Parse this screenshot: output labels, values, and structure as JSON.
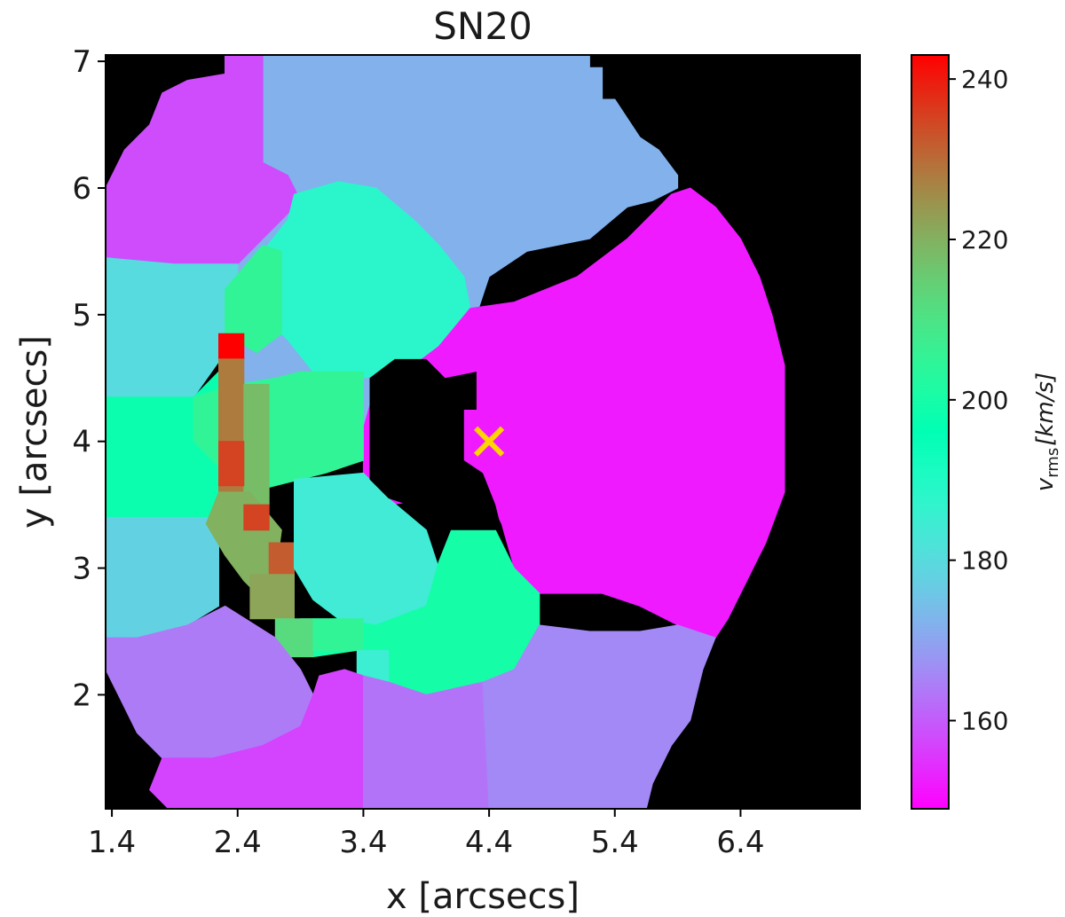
{
  "chart_data": {
    "type": "heatmap",
    "title": "SN20",
    "xlabel": "x [arcsecs]",
    "ylabel": "y [arcsecs]",
    "xlim": [
      1.35,
      7.35
    ],
    "ylim": [
      1.1,
      7.05
    ],
    "xticks": [
      1.4,
      2.4,
      3.4,
      4.4,
      5.4,
      6.4
    ],
    "xtick_labels": [
      "1.4",
      "2.4",
      "3.4",
      "4.4",
      "5.4",
      "6.4"
    ],
    "yticks": [
      2,
      3,
      4,
      5,
      6,
      7
    ],
    "ytick_labels": [
      "2",
      "3",
      "4",
      "5",
      "6",
      "7"
    ],
    "background_color": "#000000",
    "colormap": "rainbow",
    "colorbar": {
      "label_main": "v",
      "label_sub": "rms",
      "label_unit": "[km/s]",
      "vmin": 149,
      "vmax": 243,
      "ticks": [
        160,
        180,
        200,
        220,
        240
      ],
      "tick_labels": [
        "160",
        "180",
        "200",
        "220",
        "240"
      ]
    },
    "marker": {
      "x": 4.4,
      "y": 4.0,
      "symbol": "x",
      "color": "#ffd400"
    },
    "bins": [
      {
        "v": 172,
        "poly": [
          [
            2.3,
            7.05
          ],
          [
            5.2,
            7.05
          ],
          [
            5.2,
            6.95
          ],
          [
            5.3,
            6.95
          ],
          [
            5.3,
            6.7
          ],
          [
            5.4,
            6.7
          ],
          [
            5.5,
            6.55
          ],
          [
            5.6,
            6.4
          ],
          [
            5.75,
            6.3
          ],
          [
            5.9,
            6.1
          ],
          [
            5.9,
            6.0
          ],
          [
            5.7,
            5.9
          ],
          [
            5.5,
            5.85
          ],
          [
            5.2,
            5.6
          ],
          [
            4.7,
            5.5
          ],
          [
            4.4,
            5.3
          ],
          [
            4.3,
            5.0
          ],
          [
            4.1,
            4.8
          ],
          [
            3.9,
            4.75
          ],
          [
            3.5,
            4.45
          ],
          [
            3.4,
            4.1
          ],
          [
            2.6,
            4.1
          ],
          [
            2.3,
            4.6
          ],
          [
            2.15,
            5.2
          ],
          [
            2.2,
            5.65
          ],
          [
            2.3,
            6.0
          ],
          [
            2.3,
            6.3
          ],
          [
            2.3,
            6.6
          ],
          [
            2.3,
            7.05
          ]
        ]
      },
      {
        "v": 158,
        "poly": [
          [
            1.35,
            6.0
          ],
          [
            1.5,
            6.3
          ],
          [
            1.7,
            6.5
          ],
          [
            1.8,
            6.75
          ],
          [
            2.0,
            6.85
          ],
          [
            2.3,
            6.9
          ],
          [
            2.3,
            7.05
          ],
          [
            2.6,
            7.05
          ],
          [
            2.6,
            6.2
          ],
          [
            2.8,
            6.1
          ],
          [
            2.9,
            5.9
          ],
          [
            2.6,
            5.6
          ],
          [
            2.4,
            5.4
          ],
          [
            1.9,
            5.4
          ],
          [
            1.35,
            5.45
          ]
        ]
      },
      {
        "v": 180,
        "poly": [
          [
            1.35,
            5.45
          ],
          [
            1.9,
            5.4
          ],
          [
            2.4,
            5.4
          ],
          [
            2.4,
            5.2
          ],
          [
            2.3,
            4.7
          ],
          [
            2.05,
            4.35
          ],
          [
            1.35,
            4.35
          ]
        ]
      },
      {
        "v": 188,
        "poly": [
          [
            2.85,
            5.95
          ],
          [
            3.2,
            6.05
          ],
          [
            3.5,
            6.0
          ],
          [
            3.8,
            5.75
          ],
          [
            4.0,
            5.55
          ],
          [
            4.2,
            5.3
          ],
          [
            4.25,
            5.05
          ],
          [
            4.05,
            4.75
          ],
          [
            3.7,
            4.55
          ],
          [
            3.4,
            4.5
          ],
          [
            3.0,
            4.55
          ],
          [
            2.8,
            4.8
          ],
          [
            2.6,
            5.0
          ],
          [
            2.5,
            5.2
          ],
          [
            2.6,
            5.5
          ],
          [
            2.8,
            5.75
          ]
        ]
      },
      {
        "v": 205,
        "poly": [
          [
            2.3,
            5.2
          ],
          [
            2.6,
            5.55
          ],
          [
            2.75,
            5.5
          ],
          [
            2.75,
            4.85
          ],
          [
            2.55,
            4.7
          ],
          [
            2.3,
            4.85
          ]
        ]
      },
      {
        "v": 243,
        "poly": [
          [
            2.25,
            4.85
          ],
          [
            2.45,
            4.85
          ],
          [
            2.45,
            4.65
          ],
          [
            2.25,
            4.65
          ]
        ]
      },
      {
        "v": 152,
        "poly": [
          [
            4.25,
            5.05
          ],
          [
            4.6,
            5.1
          ],
          [
            5.1,
            5.3
          ],
          [
            5.5,
            5.6
          ],
          [
            5.7,
            5.8
          ],
          [
            5.85,
            5.95
          ],
          [
            6.0,
            6.0
          ],
          [
            6.2,
            5.85
          ],
          [
            6.4,
            5.6
          ],
          [
            6.55,
            5.3
          ],
          [
            6.65,
            5.0
          ],
          [
            6.75,
            4.6
          ],
          [
            6.75,
            4.0
          ],
          [
            6.75,
            3.6
          ],
          [
            6.6,
            3.2
          ],
          [
            6.45,
            2.9
          ],
          [
            6.3,
            2.6
          ],
          [
            6.2,
            2.45
          ],
          [
            5.9,
            2.55
          ],
          [
            5.6,
            2.7
          ],
          [
            5.3,
            2.8
          ],
          [
            4.8,
            2.8
          ],
          [
            4.6,
            3.0
          ],
          [
            4.5,
            3.35
          ],
          [
            4.4,
            3.55
          ],
          [
            4.3,
            3.75
          ],
          [
            4.2,
            3.6
          ],
          [
            4.0,
            3.55
          ],
          [
            3.6,
            3.5
          ],
          [
            3.4,
            3.75
          ],
          [
            3.4,
            4.1
          ],
          [
            3.5,
            4.45
          ],
          [
            3.8,
            4.6
          ],
          [
            4.0,
            4.75
          ]
        ]
      },
      {
        "v": 198,
        "poly": [
          [
            1.35,
            4.35
          ],
          [
            2.05,
            4.35
          ],
          [
            2.25,
            4.55
          ],
          [
            2.25,
            3.4
          ],
          [
            1.35,
            3.4
          ]
        ]
      },
      {
        "v": 205,
        "poly": [
          [
            2.05,
            4.35
          ],
          [
            2.4,
            4.45
          ],
          [
            2.7,
            4.5
          ],
          [
            2.9,
            4.55
          ],
          [
            3.4,
            4.55
          ],
          [
            3.4,
            3.85
          ],
          [
            3.1,
            3.75
          ],
          [
            2.7,
            3.65
          ],
          [
            2.5,
            3.6
          ],
          [
            2.25,
            3.8
          ],
          [
            2.05,
            4.0
          ]
        ]
      },
      {
        "v": 228,
        "poly": [
          [
            2.25,
            4.65
          ],
          [
            2.45,
            4.65
          ],
          [
            2.45,
            3.45
          ],
          [
            2.25,
            3.45
          ]
        ]
      },
      {
        "v": 218,
        "poly": [
          [
            2.45,
            4.45
          ],
          [
            2.65,
            4.45
          ],
          [
            2.65,
            3.5
          ],
          [
            2.45,
            3.5
          ]
        ]
      },
      {
        "v": 235,
        "poly": [
          [
            2.25,
            4.0
          ],
          [
            2.45,
            4.0
          ],
          [
            2.45,
            3.65
          ],
          [
            2.25,
            3.65
          ]
        ]
      },
      {
        "v": 178,
        "poly": [
          [
            1.35,
            3.4
          ],
          [
            2.25,
            3.4
          ],
          [
            2.25,
            2.7
          ],
          [
            2.0,
            2.55
          ],
          [
            1.6,
            2.45
          ],
          [
            1.35,
            2.45
          ]
        ]
      },
      {
        "v": 220,
        "poly": [
          [
            2.25,
            3.6
          ],
          [
            2.5,
            3.6
          ],
          [
            2.75,
            3.3
          ],
          [
            2.7,
            2.95
          ],
          [
            2.55,
            2.8
          ],
          [
            2.45,
            2.9
          ],
          [
            2.3,
            3.1
          ],
          [
            2.15,
            3.35
          ]
        ]
      },
      {
        "v": 235,
        "poly": [
          [
            2.45,
            3.5
          ],
          [
            2.65,
            3.5
          ],
          [
            2.65,
            3.3
          ],
          [
            2.45,
            3.3
          ]
        ]
      },
      {
        "v": 232,
        "poly": [
          [
            2.65,
            3.2
          ],
          [
            2.85,
            3.2
          ],
          [
            2.85,
            2.95
          ],
          [
            2.65,
            2.95
          ]
        ]
      },
      {
        "v": 222,
        "poly": [
          [
            2.5,
            2.95
          ],
          [
            2.85,
            2.95
          ],
          [
            2.85,
            2.6
          ],
          [
            2.5,
            2.6
          ]
        ]
      },
      {
        "v": 184,
        "poly": [
          [
            2.85,
            3.7
          ],
          [
            3.4,
            3.75
          ],
          [
            3.6,
            3.55
          ],
          [
            3.9,
            3.3
          ],
          [
            4.0,
            3.0
          ],
          [
            3.9,
            2.7
          ],
          [
            3.5,
            2.55
          ],
          [
            3.2,
            2.6
          ],
          [
            3.0,
            2.75
          ],
          [
            2.85,
            3.0
          ]
        ]
      },
      {
        "v": 200,
        "poly": [
          [
            2.9,
            2.6
          ],
          [
            3.2,
            2.6
          ],
          [
            3.5,
            2.55
          ],
          [
            3.9,
            2.7
          ],
          [
            4.0,
            3.05
          ],
          [
            4.1,
            3.3
          ],
          [
            4.4,
            3.4
          ],
          [
            4.5,
            3.2
          ],
          [
            4.6,
            3.0
          ],
          [
            4.8,
            2.8
          ],
          [
            4.8,
            2.55
          ],
          [
            4.6,
            2.2
          ],
          [
            4.35,
            2.1
          ],
          [
            3.9,
            2.0
          ],
          [
            3.6,
            2.1
          ],
          [
            3.35,
            2.35
          ],
          [
            3.0,
            2.3
          ]
        ]
      },
      {
        "v": 212,
        "poly": [
          [
            2.7,
            2.6
          ],
          [
            3.0,
            2.6
          ],
          [
            3.0,
            2.3
          ],
          [
            2.7,
            2.3
          ]
        ]
      },
      {
        "v": 205,
        "poly": [
          [
            3.0,
            2.6
          ],
          [
            3.4,
            2.6
          ],
          [
            3.4,
            2.35
          ],
          [
            3.0,
            2.35
          ]
        ]
      },
      {
        "v": 185,
        "poly": [
          [
            3.35,
            2.35
          ],
          [
            3.6,
            2.35
          ],
          [
            3.6,
            1.95
          ],
          [
            3.35,
            1.95
          ]
        ]
      },
      {
        "v": 164,
        "poly": [
          [
            1.35,
            2.45
          ],
          [
            1.6,
            2.45
          ],
          [
            2.0,
            2.55
          ],
          [
            2.3,
            2.7
          ],
          [
            2.7,
            2.45
          ],
          [
            2.9,
            2.2
          ],
          [
            3.0,
            2.0
          ],
          [
            2.9,
            1.75
          ],
          [
            2.6,
            1.6
          ],
          [
            2.2,
            1.5
          ],
          [
            1.8,
            1.5
          ],
          [
            1.6,
            1.7
          ],
          [
            1.45,
            2.0
          ],
          [
            1.35,
            2.2
          ]
        ]
      },
      {
        "v": 157,
        "poly": [
          [
            1.8,
            1.5
          ],
          [
            2.2,
            1.5
          ],
          [
            2.6,
            1.6
          ],
          [
            2.9,
            1.75
          ],
          [
            3.0,
            2.0
          ],
          [
            3.05,
            2.15
          ],
          [
            3.25,
            2.2
          ],
          [
            3.4,
            2.15
          ],
          [
            3.4,
            1.1
          ],
          [
            1.85,
            1.1
          ],
          [
            1.7,
            1.25
          ]
        ]
      },
      {
        "v": 163,
        "poly": [
          [
            3.4,
            2.15
          ],
          [
            3.6,
            2.1
          ],
          [
            3.9,
            2.0
          ],
          [
            4.35,
            2.1
          ],
          [
            4.4,
            1.1
          ],
          [
            3.4,
            1.1
          ]
        ]
      },
      {
        "v": 166,
        "poly": [
          [
            4.35,
            2.1
          ],
          [
            4.6,
            2.2
          ],
          [
            4.8,
            2.55
          ],
          [
            5.2,
            2.5
          ],
          [
            5.6,
            2.5
          ],
          [
            5.9,
            2.55
          ],
          [
            6.2,
            2.45
          ],
          [
            6.1,
            2.2
          ],
          [
            6.0,
            1.8
          ],
          [
            5.85,
            1.6
          ],
          [
            5.7,
            1.3
          ],
          [
            5.65,
            1.1
          ],
          [
            4.4,
            1.1
          ]
        ]
      }
    ],
    "masked_regions": [
      {
        "poly": [
          [
            3.45,
            4.5
          ],
          [
            3.65,
            4.65
          ],
          [
            3.9,
            4.65
          ],
          [
            4.05,
            4.5
          ],
          [
            4.3,
            4.55
          ],
          [
            4.3,
            4.25
          ],
          [
            4.2,
            4.25
          ],
          [
            4.2,
            3.85
          ],
          [
            4.35,
            3.75
          ],
          [
            4.45,
            3.5
          ],
          [
            4.5,
            3.3
          ],
          [
            4.0,
            3.3
          ],
          [
            3.9,
            3.45
          ],
          [
            3.6,
            3.55
          ],
          [
            3.45,
            3.7
          ]
        ]
      }
    ]
  }
}
